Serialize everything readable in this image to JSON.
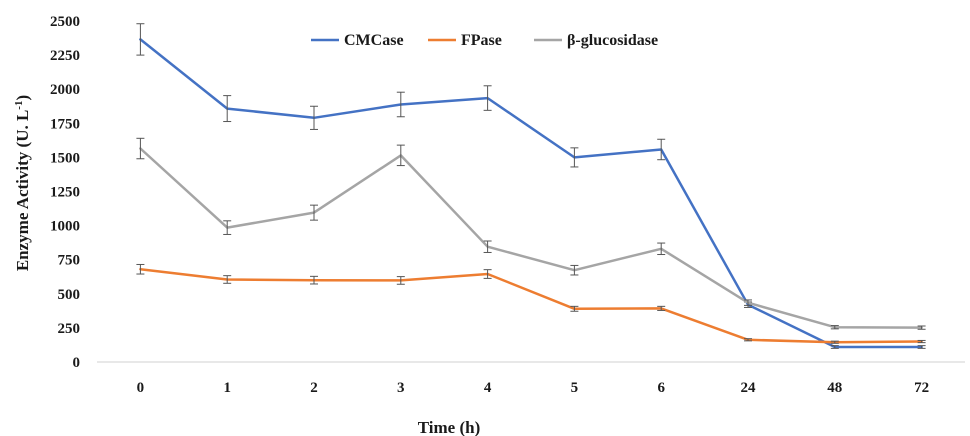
{
  "chart_data": {
    "type": "line",
    "title": "",
    "xlabel": "Time (h)",
    "ylabel_main": "Enzyme Activity (U. L",
    "ylabel_sup": "-1",
    "ylabel_close": ")",
    "categories": [
      "0",
      "1",
      "2",
      "3",
      "4",
      "5",
      "6",
      "24",
      "48",
      "72"
    ],
    "yticks": [
      "0",
      "250",
      "500",
      "750",
      "1000",
      "1250",
      "1500",
      "1750",
      "2000",
      "2250",
      "2500"
    ],
    "ylim": [
      0,
      2500
    ],
    "grid": false,
    "legend_position": "top-center",
    "series": [
      {
        "name": "CMCase",
        "color": "#4472c4",
        "values": [
          2365,
          1858,
          1790,
          1888,
          1935,
          1500,
          1558,
          420,
          110,
          110
        ],
        "errors": [
          115,
          95,
          85,
          90,
          90,
          70,
          75,
          20,
          10,
          10
        ]
      },
      {
        "name": "FPase",
        "color": "#ed7d31",
        "values": [
          680,
          605,
          600,
          598,
          645,
          390,
          393,
          163,
          145,
          150
        ],
        "errors": [
          35,
          28,
          28,
          28,
          32,
          18,
          15,
          8,
          8,
          8
        ]
      },
      {
        "name": "β-glucosidase",
        "color": "#a5a5a5",
        "values": [
          1565,
          985,
          1095,
          1515,
          845,
          673,
          830,
          435,
          255,
          252
        ],
        "errors": [
          75,
          50,
          55,
          75,
          42,
          35,
          42,
          20,
          12,
          12
        ]
      }
    ]
  }
}
